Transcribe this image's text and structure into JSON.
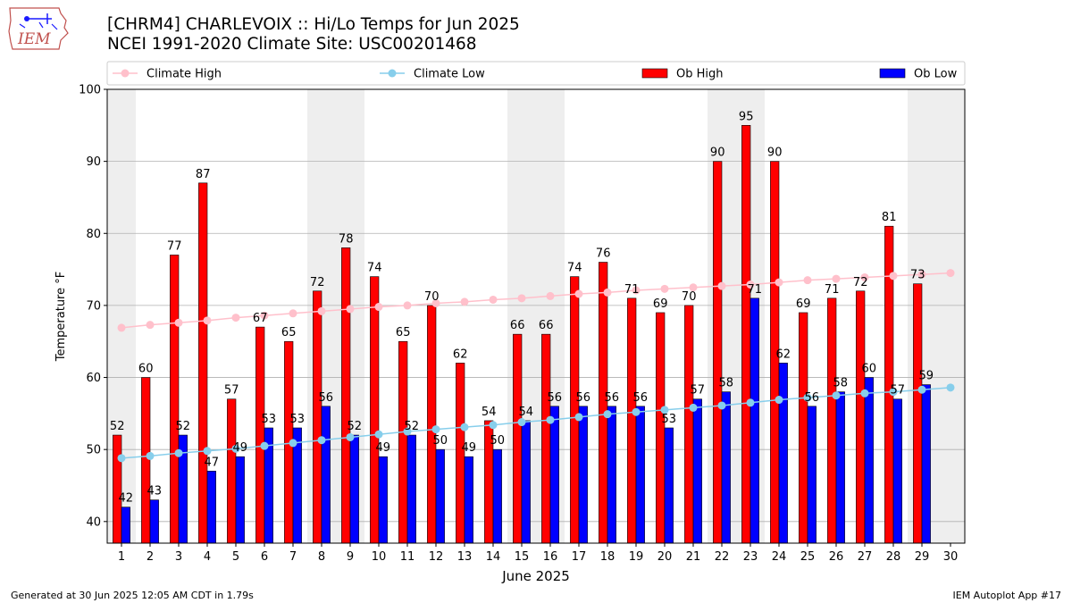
{
  "title": {
    "line1": "[CHRM4] CHARLEVOIX :: Hi/Lo Temps for Jun 2025",
    "line2": "NCEI 1991-2020 Climate Site: USC00201468"
  },
  "logo": {
    "text": "IEM",
    "icon": "iowa-state-map-icon"
  },
  "footer": {
    "left": "Generated at 30 Jun 2025 12:05 AM CDT in 1.79s",
    "right": "IEM Autoplot App #17"
  },
  "chart_data": {
    "type": "bar",
    "xlabel": "June 2025",
    "ylabel": "Temperature °F",
    "ylim": [
      37,
      100
    ],
    "xlim": [
      0.5,
      30.5
    ],
    "yticks": [
      40,
      50,
      60,
      70,
      80,
      90,
      100
    ],
    "x": [
      1,
      2,
      3,
      4,
      5,
      6,
      7,
      8,
      9,
      10,
      11,
      12,
      13,
      14,
      15,
      16,
      17,
      18,
      19,
      20,
      21,
      22,
      23,
      24,
      25,
      26,
      27,
      28,
      29,
      30
    ],
    "grid": "horizontal",
    "weekend_shading": [
      [
        0.5,
        1.5
      ],
      [
        7.5,
        9.5
      ],
      [
        14.5,
        16.5
      ],
      [
        21.5,
        23.5
      ],
      [
        28.5,
        30.5
      ]
    ],
    "legend_placement": "top",
    "colors": {
      "ob_high": "#ff0000",
      "ob_low": "#0000ff",
      "climate_high": "#ffc0cb",
      "climate_low": "#87ceeb",
      "weekend": "#eeeeee",
      "grid": "#b0b0b0"
    },
    "legend": [
      {
        "label": "Climate High",
        "kind": "line",
        "key": "climate_high"
      },
      {
        "label": "Climate Low",
        "kind": "line",
        "key": "climate_low"
      },
      {
        "label": "Ob High",
        "kind": "bar",
        "key": "ob_high"
      },
      {
        "label": "Ob Low",
        "kind": "bar",
        "key": "ob_low"
      }
    ],
    "series": [
      {
        "name": "Ob High",
        "key": "ob_high",
        "values": [
          52,
          60,
          77,
          87,
          57,
          67,
          65,
          72,
          78,
          74,
          65,
          70,
          62,
          54,
          66,
          66,
          74,
          76,
          71,
          69,
          70,
          90,
          95,
          90,
          69,
          71,
          72,
          81,
          73,
          null
        ]
      },
      {
        "name": "Ob Low",
        "key": "ob_low",
        "values": [
          42,
          43,
          52,
          47,
          49,
          53,
          53,
          56,
          52,
          49,
          52,
          50,
          49,
          50,
          54,
          56,
          56,
          56,
          56,
          53,
          57,
          58,
          71,
          62,
          56,
          58,
          60,
          57,
          59,
          null
        ]
      },
      {
        "name": "Climate High",
        "key": "climate_high",
        "values": [
          66.9,
          67.3,
          67.6,
          67.9,
          68.3,
          68.6,
          68.9,
          69.2,
          69.5,
          69.8,
          70.0,
          70.3,
          70.5,
          70.8,
          71.0,
          71.3,
          71.6,
          71.8,
          72.1,
          72.3,
          72.5,
          72.7,
          72.9,
          73.2,
          73.5,
          73.7,
          73.9,
          74.1,
          74.3,
          74.5
        ]
      },
      {
        "name": "Climate Low",
        "key": "climate_low",
        "values": [
          48.8,
          49.1,
          49.5,
          49.8,
          50.1,
          50.5,
          50.9,
          51.3,
          51.7,
          52.1,
          52.5,
          52.8,
          53.1,
          53.4,
          53.8,
          54.1,
          54.5,
          54.9,
          55.2,
          55.5,
          55.8,
          56.1,
          56.5,
          56.9,
          57.2,
          57.5,
          57.8,
          58.0,
          58.3,
          58.6
        ]
      }
    ]
  }
}
